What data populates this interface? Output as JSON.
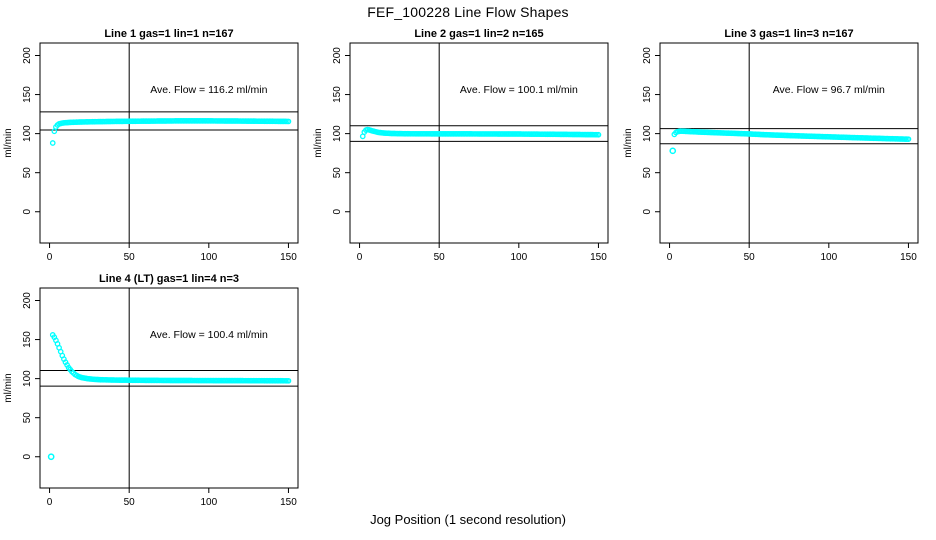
{
  "figure": {
    "title": "FEF_100228  Line Flow Shapes",
    "xlabel": "Jog Position (1 second resolution)",
    "ylabel": "ml/min",
    "point_color": "#00ffff",
    "axis_color": "#000000",
    "background": "#ffffff"
  },
  "chart_data": [
    {
      "type": "scatter",
      "title": "Line 1 gas=1 lin=1 n=167",
      "annotation": "Ave. Flow =  116.2  ml/min",
      "ave_flow_ml_min": 116.2,
      "n": 167,
      "xlabel": "Jog Position (1 second resolution)",
      "ylabel": "ml/min",
      "xticks": [
        0,
        50,
        100,
        150
      ],
      "yticks": [
        0,
        50,
        100,
        150,
        200
      ],
      "xlim": [
        -6,
        156
      ],
      "ylim": [
        -40,
        216
      ],
      "vline_x": 50,
      "hlines": [
        104.6,
        127.8
      ],
      "grid": false,
      "keypoints": [
        [
          2,
          88
        ],
        [
          3,
          103
        ],
        [
          4,
          108.5
        ],
        [
          5,
          111
        ],
        [
          6,
          112.5
        ],
        [
          8,
          113.5
        ],
        [
          10,
          114
        ],
        [
          15,
          114.6
        ],
        [
          20,
          114.9
        ],
        [
          30,
          115.3
        ],
        [
          40,
          115.6
        ],
        [
          50,
          115.8
        ],
        [
          60,
          116
        ],
        [
          80,
          116.3
        ],
        [
          100,
          116.3
        ],
        [
          120,
          116.1
        ],
        [
          140,
          115.8
        ],
        [
          150,
          115.6
        ]
      ],
      "outliers": []
    },
    {
      "type": "scatter",
      "title": "Line 2 gas=1 lin=2 n=165",
      "annotation": "Ave. Flow =  100.1  ml/min",
      "ave_flow_ml_min": 100.1,
      "n": 165,
      "xlabel": "Jog Position (1 second resolution)",
      "ylabel": "ml/min",
      "xticks": [
        0,
        50,
        100,
        150
      ],
      "yticks": [
        0,
        50,
        100,
        150,
        200
      ],
      "xlim": [
        -6,
        156
      ],
      "ylim": [
        -40,
        216
      ],
      "vline_x": 50,
      "hlines": [
        90.1,
        110.1
      ],
      "grid": false,
      "keypoints": [
        [
          2,
          96.5
        ],
        [
          3,
          102
        ],
        [
          4,
          104.5
        ],
        [
          5,
          105.2
        ],
        [
          6,
          104.8
        ],
        [
          8,
          103.5
        ],
        [
          10,
          102.5
        ],
        [
          12,
          101.5
        ],
        [
          15,
          100.8
        ],
        [
          20,
          100.2
        ],
        [
          30,
          99.8
        ],
        [
          50,
          99.7
        ],
        [
          80,
          99.6
        ],
        [
          100,
          99.5
        ],
        [
          120,
          99.2
        ],
        [
          140,
          98.8
        ],
        [
          150,
          98.6
        ]
      ],
      "outliers": []
    },
    {
      "type": "scatter",
      "title": "Line 3 gas=1 lin=3 n=167",
      "annotation": "Ave. Flow =  96.7  ml/min",
      "ave_flow_ml_min": 96.7,
      "n": 167,
      "xlabel": "Jog Position (1 second resolution)",
      "ylabel": "ml/min",
      "xticks": [
        0,
        50,
        100,
        150
      ],
      "yticks": [
        0,
        50,
        100,
        150,
        200
      ],
      "xlim": [
        -6,
        156
      ],
      "ylim": [
        -40,
        216
      ],
      "vline_x": 50,
      "hlines": [
        87.0,
        106.4
      ],
      "grid": false,
      "keypoints": [
        [
          3,
          99
        ],
        [
          4,
          101.5
        ],
        [
          5,
          102.5
        ],
        [
          7,
          103.2
        ],
        [
          10,
          102.9
        ],
        [
          15,
          102.4
        ],
        [
          20,
          101.9
        ],
        [
          30,
          101.1
        ],
        [
          40,
          100.4
        ],
        [
          50,
          99.6
        ],
        [
          60,
          98.6
        ],
        [
          80,
          97.2
        ],
        [
          100,
          95.9
        ],
        [
          120,
          94.6
        ],
        [
          140,
          93.4
        ],
        [
          150,
          92.9
        ]
      ],
      "outliers": [
        [
          2,
          78
        ]
      ]
    },
    {
      "type": "scatter",
      "title": "Line 4 (LT) gas=1 lin=4 n=3",
      "annotation": "Ave. Flow =  100.4  ml/min",
      "ave_flow_ml_min": 100.4,
      "n": 3,
      "xlabel": "Jog Position (1 second resolution)",
      "ylabel": "ml/min",
      "xticks": [
        0,
        50,
        100,
        150
      ],
      "yticks": [
        0,
        50,
        100,
        150,
        200
      ],
      "xlim": [
        -6,
        156
      ],
      "ylim": [
        -40,
        216
      ],
      "vline_x": 50,
      "hlines": [
        90.4,
        110.4
      ],
      "grid": false,
      "keypoints": [
        [
          2,
          156
        ],
        [
          3,
          153
        ],
        [
          4,
          149
        ],
        [
          5,
          144.5
        ],
        [
          6,
          139.5
        ],
        [
          7,
          134.5
        ],
        [
          8,
          129.5
        ],
        [
          9,
          125
        ],
        [
          10,
          121
        ],
        [
          12,
          114
        ],
        [
          14,
          109
        ],
        [
          16,
          105.3
        ],
        [
          18,
          102.9
        ],
        [
          20,
          101.4
        ],
        [
          24,
          99.9
        ],
        [
          28,
          99.1
        ],
        [
          32,
          98.6
        ],
        [
          40,
          98.2
        ],
        [
          50,
          98
        ],
        [
          60,
          97.8
        ],
        [
          80,
          97.6
        ],
        [
          100,
          97.5
        ],
        [
          120,
          97.4
        ],
        [
          140,
          97.3
        ],
        [
          150,
          97.2
        ]
      ],
      "outliers": [
        [
          1,
          0
        ]
      ]
    }
  ]
}
